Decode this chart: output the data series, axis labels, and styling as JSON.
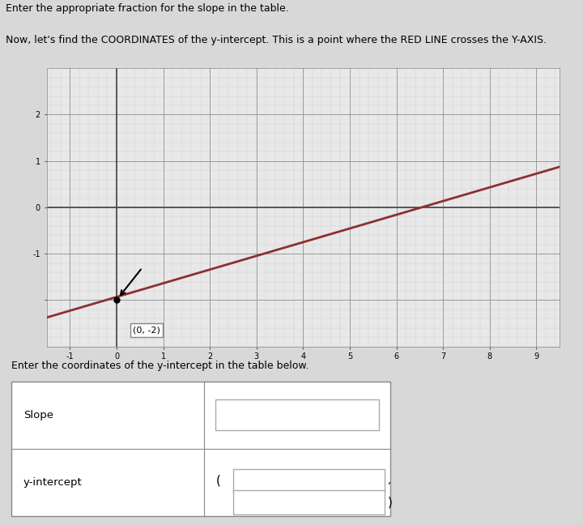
{
  "title_line1": "Enter the appropriate fraction for the slope in the table.",
  "title_line2": "Now, let's find the COORDINATES of the y-intercept. This is a point where the RED LINE crosses the Y-AXIS.",
  "bg_color": "#d8d8d8",
  "graph_bg": "#e8e8e8",
  "line_color": "#8b3030",
  "line_x": [
    -1.5,
    9.5
  ],
  "line_y": [
    -2.375,
    0.875
  ],
  "intercept_label": "(0, -2)",
  "intercept_x": 0,
  "intercept_y": -2,
  "xlim": [
    -1.5,
    9.5
  ],
  "ylim": [
    -3.0,
    3.0
  ],
  "x_ticks": [
    -1,
    0,
    1,
    2,
    3,
    4,
    5,
    6,
    7,
    8,
    9
  ],
  "y_ticks": [
    -2,
    -1,
    0,
    1,
    2
  ],
  "table_text_slope": "Slope",
  "table_text_yint": "y-intercept",
  "enter_coords_text": "Enter the coordinates of the y-intercept in the table below.",
  "font_size_header": 9
}
